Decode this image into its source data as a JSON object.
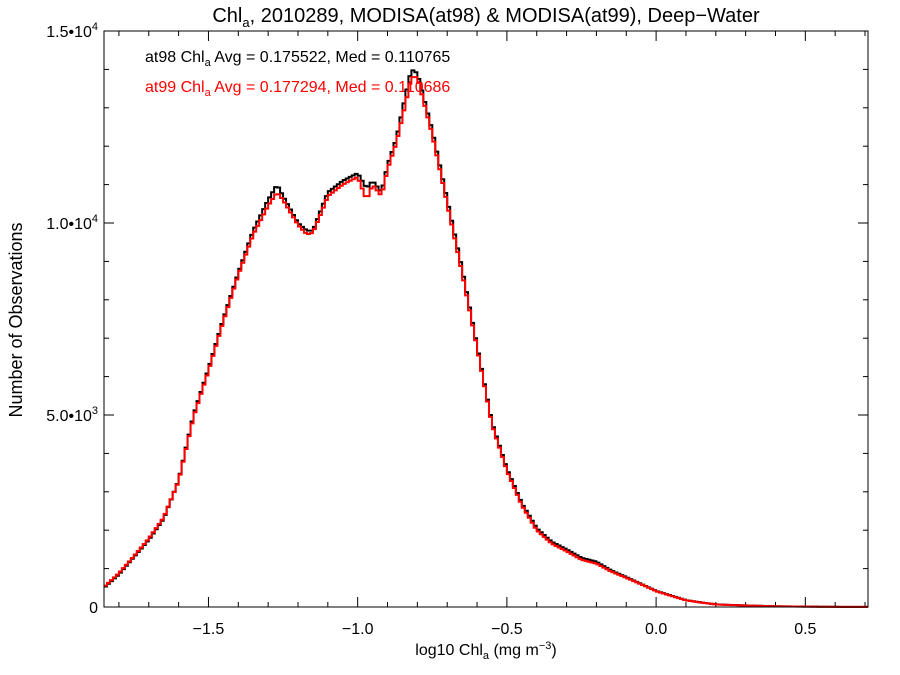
{
  "chart_data": {
    "type": "line",
    "title": {
      "prefix": "Chl",
      "sub": "a",
      "rest": ", 2010289, MODISA(at98) & MODISA(at99), Deep−Water"
    },
    "xlabel": {
      "prefix": "log10 Chl",
      "sub": "a",
      "rest": " (mg m",
      "sup": "−3",
      "end": ")"
    },
    "ylabel": "Number of Observations",
    "xlim": [
      -1.85,
      0.71
    ],
    "ylim": [
      0,
      15000
    ],
    "x_ticks": [
      {
        "value": -1.5,
        "label": "−1.5"
      },
      {
        "value": -1.0,
        "label": "−1.0"
      },
      {
        "value": -0.5,
        "label": "−0.5"
      },
      {
        "value": 0.0,
        "label": "0.0"
      },
      {
        "value": 0.5,
        "label": "0.5"
      }
    ],
    "x_minor_step": 0.1,
    "y_ticks": [
      {
        "value": 0,
        "mant": "0",
        "exp": ""
      },
      {
        "value": 5000,
        "mant": "5.0•10",
        "exp": "3"
      },
      {
        "value": 10000,
        "mant": "1.0•10",
        "exp": "4"
      },
      {
        "value": 15000,
        "mant": "1.5•10",
        "exp": "4"
      }
    ],
    "y_minor_step": 1000,
    "grid": false,
    "legend": [
      {
        "prefix": "at98 Chl",
        "sub": "a",
        "rest": " Avg = 0.175522, Med = 0.110765",
        "color": "#000000"
      },
      {
        "prefix": "at99 Chl",
        "sub": "a",
        "rest": " Avg = 0.177294, Med = 0.110686",
        "color": "#ff0000"
      }
    ],
    "series": [
      {
        "color": "#000000",
        "x": [
          -1.85,
          -1.8,
          -1.75,
          -1.7,
          -1.65,
          -1.6,
          -1.55,
          -1.5,
          -1.45,
          -1.4,
          -1.35,
          -1.3,
          -1.27,
          -1.25,
          -1.2,
          -1.17,
          -1.15,
          -1.12,
          -1.1,
          -1.05,
          -1.0,
          -0.97,
          -0.95,
          -0.92,
          -0.9,
          -0.87,
          -0.84,
          -0.82,
          -0.8,
          -0.78,
          -0.75,
          -0.7,
          -0.65,
          -0.6,
          -0.55,
          -0.5,
          -0.45,
          -0.4,
          -0.35,
          -0.3,
          -0.25,
          -0.2,
          -0.15,
          -0.1,
          -0.05,
          0.0,
          0.05,
          0.1,
          0.15,
          0.2,
          0.3,
          0.4,
          0.5,
          0.6,
          0.71
        ],
        "y": [
          500,
          850,
          1300,
          1750,
          2300,
          3300,
          5000,
          6200,
          7500,
          8700,
          9800,
          10600,
          11000,
          10700,
          10000,
          9800,
          9800,
          10400,
          10800,
          11100,
          11300,
          10900,
          11100,
          10800,
          11500,
          12200,
          13300,
          14000,
          13900,
          13300,
          12400,
          10600,
          8800,
          6800,
          4800,
          3600,
          2700,
          2050,
          1700,
          1500,
          1280,
          1180,
          950,
          780,
          600,
          420,
          300,
          180,
          120,
          70,
          40,
          20,
          10,
          5,
          2
        ]
      },
      {
        "color": "#ff0000",
        "x": [
          -1.85,
          -1.8,
          -1.75,
          -1.7,
          -1.65,
          -1.6,
          -1.55,
          -1.5,
          -1.45,
          -1.4,
          -1.35,
          -1.3,
          -1.27,
          -1.25,
          -1.2,
          -1.17,
          -1.15,
          -1.12,
          -1.1,
          -1.05,
          -1.0,
          -0.97,
          -0.95,
          -0.92,
          -0.9,
          -0.87,
          -0.84,
          -0.82,
          -0.8,
          -0.78,
          -0.75,
          -0.7,
          -0.65,
          -0.6,
          -0.55,
          -0.5,
          -0.45,
          -0.4,
          -0.35,
          -0.3,
          -0.25,
          -0.2,
          -0.15,
          -0.1,
          -0.05,
          0.0,
          0.05,
          0.1,
          0.15,
          0.2,
          0.3,
          0.4,
          0.5,
          0.6,
          0.71
        ],
        "y": [
          520,
          880,
          1320,
          1780,
          2330,
          3280,
          4950,
          6150,
          7450,
          8650,
          9700,
          10450,
          10800,
          10600,
          9950,
          9700,
          9750,
          10300,
          10700,
          11000,
          11200,
          10600,
          11000,
          10700,
          11400,
          12100,
          13100,
          13800,
          13800,
          13200,
          12300,
          10500,
          8700,
          6750,
          4750,
          3550,
          2650,
          2000,
          1650,
          1450,
          1230,
          1130,
          920,
          760,
          590,
          410,
          290,
          175,
          115,
          65,
          38,
          18,
          9,
          4,
          2
        ]
      }
    ]
  }
}
